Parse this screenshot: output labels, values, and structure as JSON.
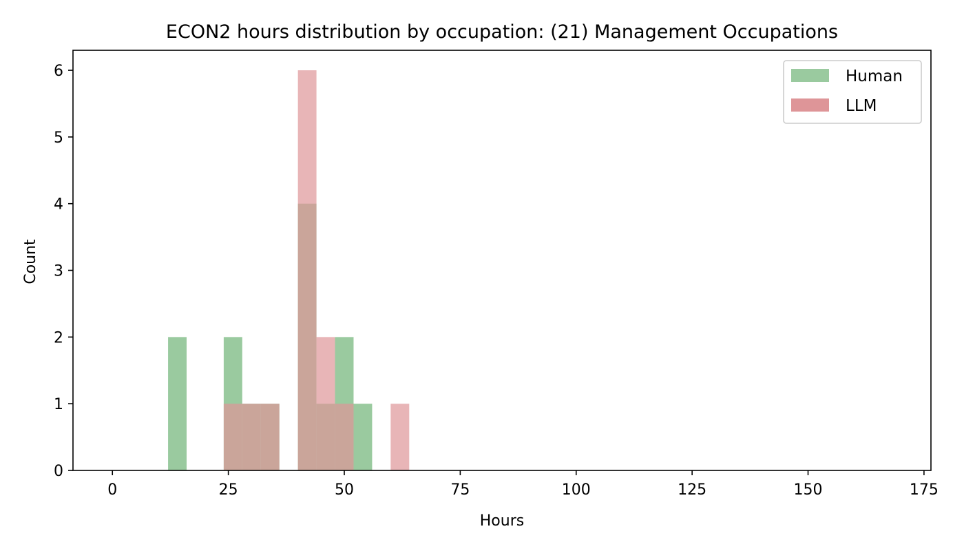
{
  "chart_data": {
    "type": "bar",
    "title": "ECON2 hours distribution by occupation: (21) Management Occupations",
    "xlabel": "Hours",
    "ylabel": "Count",
    "xlim": [
      -8.5,
      176.5
    ],
    "ylim": [
      0,
      6.3
    ],
    "x_ticks": [
      0,
      25,
      50,
      75,
      100,
      125,
      150,
      175
    ],
    "y_ticks": [
      0,
      1,
      2,
      3,
      4,
      5,
      6
    ],
    "grid": false,
    "legend_position": "top-right",
    "bin_width": 4,
    "series": [
      {
        "name": "Human",
        "color": "#9aca9f",
        "bins": [
          {
            "start": 12,
            "end": 16,
            "count": 2
          },
          {
            "start": 24,
            "end": 28,
            "count": 2
          },
          {
            "start": 28,
            "end": 32,
            "count": 1
          },
          {
            "start": 32,
            "end": 36,
            "count": 1
          },
          {
            "start": 40,
            "end": 44,
            "count": 4
          },
          {
            "start": 44,
            "end": 48,
            "count": 1
          },
          {
            "start": 48,
            "end": 52,
            "count": 2
          },
          {
            "start": 52,
            "end": 56,
            "count": 1
          }
        ]
      },
      {
        "name": "LLM",
        "color": "#de9598",
        "bins": [
          {
            "start": 24,
            "end": 28,
            "count": 1
          },
          {
            "start": 28,
            "end": 32,
            "count": 1
          },
          {
            "start": 32,
            "end": 36,
            "count": 1
          },
          {
            "start": 40,
            "end": 44,
            "count": 6
          },
          {
            "start": 44,
            "end": 48,
            "count": 2
          },
          {
            "start": 48,
            "end": 52,
            "count": 1
          },
          {
            "start": 60,
            "end": 64,
            "count": 1
          }
        ]
      }
    ]
  }
}
